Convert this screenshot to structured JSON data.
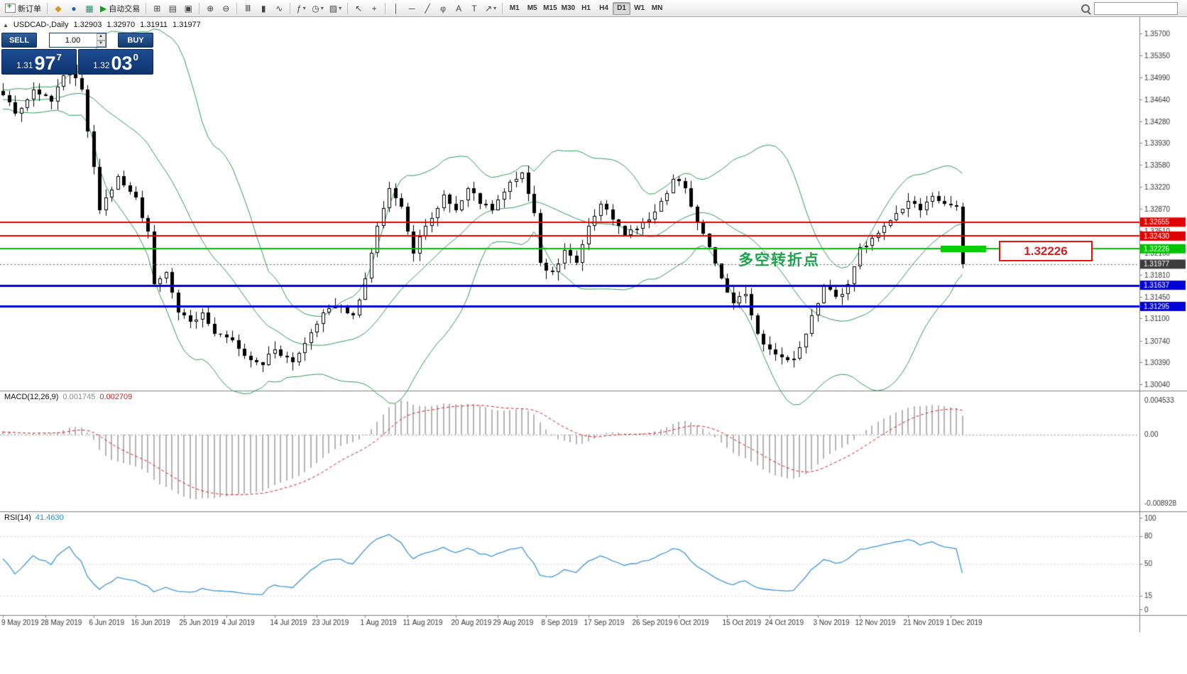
{
  "toolbar": {
    "new_order_label": "新订单",
    "autotrading_label": "自动交易",
    "icons": {
      "market_watch": "◆",
      "navigator": "●",
      "terminal": "▦",
      "autotrading_play": "▶",
      "new_chart": "⊞",
      "profiles": "▤",
      "arrange_windows": "▣",
      "zoom_in": "⊕",
      "zoom_out": "⊖",
      "bars": "Ⅲ",
      "candles": "▮",
      "line_chart": "∿",
      "indicators": "ƒ",
      "periods": "◷",
      "templates": "▨",
      "cursor": "↖",
      "crosshair": "+",
      "vertical_line": "│",
      "horizontal_line": "─",
      "trendline": "╱",
      "fibonacci": "φ",
      "text": "A",
      "text_label": "T",
      "arrow": "↗",
      "caret": "▾",
      "collapse_triangle": "▲"
    },
    "timeframes": [
      "M1",
      "M5",
      "M15",
      "M30",
      "H1",
      "H4",
      "D1",
      "W1",
      "MN"
    ],
    "active_timeframe": "D1",
    "search_placeholder": ""
  },
  "trade_panel": {
    "sell_label": "SELL",
    "buy_label": "BUY",
    "volume": "1.00",
    "sell_price": {
      "prefix": "1.31",
      "big": "97",
      "sup": "7"
    },
    "buy_price": {
      "prefix": "1.32",
      "big": "03",
      "sup": "0"
    }
  },
  "chart": {
    "title": "USDCAD-,Daily",
    "ohlc": {
      "open": "1.32903",
      "high": "1.32970",
      "low": "1.31911",
      "close": "1.31977"
    },
    "annotation": {
      "text": "多空转折点",
      "color": "#1fa24d"
    },
    "callout_text": "1.32226"
  },
  "chart_data": {
    "type": "candlestick",
    "symbol": "USDCAD-",
    "timeframe": "Daily",
    "count": 160,
    "last_candle": {
      "open": 1.32903,
      "high": 1.3297,
      "low": 1.31911,
      "close": 1.31977
    },
    "close_anchors": [
      [
        0,
        1.347
      ],
      [
        2,
        1.344
      ],
      [
        5,
        1.348
      ],
      [
        8,
        1.346
      ],
      [
        11,
        1.352
      ],
      [
        13,
        1.348
      ],
      [
        16,
        1.3285
      ],
      [
        19,
        1.334
      ],
      [
        22,
        1.3305
      ],
      [
        24,
        1.325
      ],
      [
        25,
        1.3165
      ],
      [
        27,
        1.3185
      ],
      [
        29,
        1.312
      ],
      [
        31,
        1.3105
      ],
      [
        33,
        1.312
      ],
      [
        35,
        1.3085
      ],
      [
        38,
        1.3075
      ],
      [
        40,
        1.305
      ],
      [
        43,
        1.3035
      ],
      [
        45,
        1.306
      ],
      [
        48,
        1.304
      ],
      [
        50,
        1.307
      ],
      [
        53,
        1.312
      ],
      [
        56,
        1.313
      ],
      [
        58,
        1.3115
      ],
      [
        60,
        1.3175
      ],
      [
        62,
        1.326
      ],
      [
        64,
        1.332
      ],
      [
        66,
        1.329
      ],
      [
        68,
        1.3215
      ],
      [
        70,
        1.326
      ],
      [
        73,
        1.331
      ],
      [
        75,
        1.3285
      ],
      [
        77,
        1.332
      ],
      [
        79,
        1.3295
      ],
      [
        81,
        1.3285
      ],
      [
        84,
        1.333
      ],
      [
        86,
        1.3345
      ],
      [
        88,
        1.328
      ],
      [
        89,
        1.32
      ],
      [
        91,
        1.3185
      ],
      [
        93,
        1.322
      ],
      [
        95,
        1.32
      ],
      [
        97,
        1.326
      ],
      [
        99,
        1.3295
      ],
      [
        101,
        1.327
      ],
      [
        103,
        1.3245
      ],
      [
        105,
        1.3255
      ],
      [
        107,
        1.327
      ],
      [
        109,
        1.33
      ],
      [
        111,
        1.3335
      ],
      [
        113,
        1.332
      ],
      [
        115,
        1.3265
      ],
      [
        117,
        1.3225
      ],
      [
        119,
        1.3175
      ],
      [
        121,
        1.3135
      ],
      [
        123,
        1.315
      ],
      [
        125,
        1.3085
      ],
      [
        127,
        1.306
      ],
      [
        129,
        1.3048
      ],
      [
        131,
        1.3045
      ],
      [
        133,
        1.3085
      ],
      [
        136,
        1.3162
      ],
      [
        138,
        1.3145
      ],
      [
        140,
        1.3165
      ],
      [
        142,
        1.3225
      ],
      [
        144,
        1.324
      ],
      [
        146,
        1.326
      ],
      [
        148,
        1.328
      ],
      [
        150,
        1.33
      ],
      [
        152,
        1.3285
      ],
      [
        154,
        1.3308
      ],
      [
        156,
        1.3295
      ],
      [
        158,
        1.329
      ],
      [
        159,
        1.31977
      ]
    ],
    "price_axis": {
      "min": 1.3004,
      "max": 1.357,
      "ticks": [
        1.357,
        1.3535,
        1.3499,
        1.3464,
        1.3428,
        1.3393,
        1.3358,
        1.3322,
        1.3287,
        1.3251,
        1.3216,
        1.3181,
        1.3145,
        1.311,
        1.3074,
        1.3039,
        1.3004
      ]
    },
    "hlines": [
      {
        "price": 1.32655,
        "color": "#e00000",
        "width": 2
      },
      {
        "price": 1.3243,
        "color": "#e00000",
        "width": 2
      },
      {
        "price": 1.32226,
        "color": "#00c300",
        "width": 2
      },
      {
        "price": 1.31637,
        "color": "#0000d8",
        "width": 3
      },
      {
        "price": 1.31295,
        "color": "#0000d8",
        "width": 3
      }
    ],
    "current_price": 1.31977,
    "indicators": {
      "bollinger": {
        "period": 20,
        "deviation": 2,
        "color": "#2e9e5b"
      },
      "macd": {
        "label": "MACD(12,26,9)",
        "value_main": "0.001745",
        "value_signal": "0.002709",
        "axis_max": 0.004533,
        "axis_min": -0.008928,
        "axis_labels": [
          "0.004533",
          "0.00",
          "-0.008928"
        ],
        "hist_color": "#b4b4b4",
        "signal_color": "#e02020"
      },
      "rsi": {
        "label": "RSI(14)",
        "value": "41.4630",
        "levels": [
          80,
          50,
          15
        ],
        "axis_labels": [
          "100",
          "80",
          "50",
          "15",
          "0"
        ],
        "color": "#3f97d9"
      }
    },
    "x_axis": {
      "dates": [
        [
          0,
          "9 May 2019"
        ],
        [
          7,
          "28 May 2019"
        ],
        [
          15,
          "6 Jun 2019"
        ],
        [
          22,
          "16 Jun 2019"
        ],
        [
          30,
          "25 Jun 2019"
        ],
        [
          37,
          "4 Jul 2019"
        ],
        [
          45,
          "14 Jul 2019"
        ],
        [
          52,
          "23 Jul 2019"
        ],
        [
          60,
          "1 Aug 2019"
        ],
        [
          67,
          "11 Aug 2019"
        ],
        [
          75,
          "20 Aug 2019"
        ],
        [
          82,
          "29 Aug 2019"
        ],
        [
          90,
          "8 Sep 2019"
        ],
        [
          97,
          "17 Sep 2019"
        ],
        [
          105,
          "26 Sep 2019"
        ],
        [
          112,
          "6 Oct 2019"
        ],
        [
          120,
          "15 Oct 2019"
        ],
        [
          127,
          "24 Oct 2019"
        ],
        [
          135,
          "3 Nov 2019"
        ],
        [
          142,
          "12 Nov 2019"
        ],
        [
          150,
          "21 Nov 2019"
        ],
        [
          157,
          "1 Dec 2019"
        ]
      ]
    }
  }
}
